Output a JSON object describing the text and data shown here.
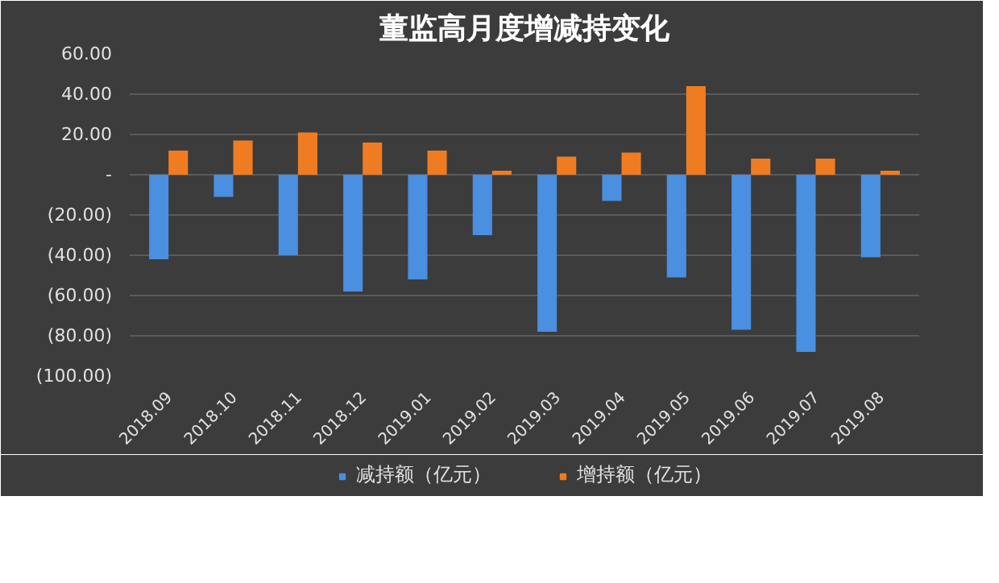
{
  "chart_data": {
    "type": "bar",
    "title": "董监高月度增减持变化",
    "categories": [
      "2018.09",
      "2018.10",
      "2018.11",
      "2018.12",
      "2019.01",
      "2019.02",
      "2019.03",
      "2019.04",
      "2019.05",
      "2019.06",
      "2019.07",
      "2019.08"
    ],
    "series": [
      {
        "name": "减持额（亿元）",
        "color": "#4a8fe0",
        "values": [
          -42,
          -11,
          -40,
          -58,
          -52,
          -30,
          -78,
          -13,
          -51,
          -77,
          -88,
          -41
        ]
      },
      {
        "name": "增持额（亿元）",
        "color": "#f07c22",
        "values": [
          12,
          17,
          21,
          16,
          12,
          2,
          9,
          11,
          44,
          8,
          8,
          2
        ]
      }
    ],
    "ylim": [
      -100,
      60
    ],
    "yticks": [
      {
        "value": 60,
        "label": "60.00"
      },
      {
        "value": 40,
        "label": "40.00"
      },
      {
        "value": 20,
        "label": "20.00"
      },
      {
        "value": 0,
        "label": "-"
      },
      {
        "value": -20,
        "label": "(20.00)"
      },
      {
        "value": -40,
        "label": "(40.00)"
      },
      {
        "value": -60,
        "label": "(60.00)"
      },
      {
        "value": -80,
        "label": "(80.00)"
      },
      {
        "value": -100,
        "label": "(100.00)"
      }
    ],
    "grid": "y",
    "legend": "bottom"
  }
}
